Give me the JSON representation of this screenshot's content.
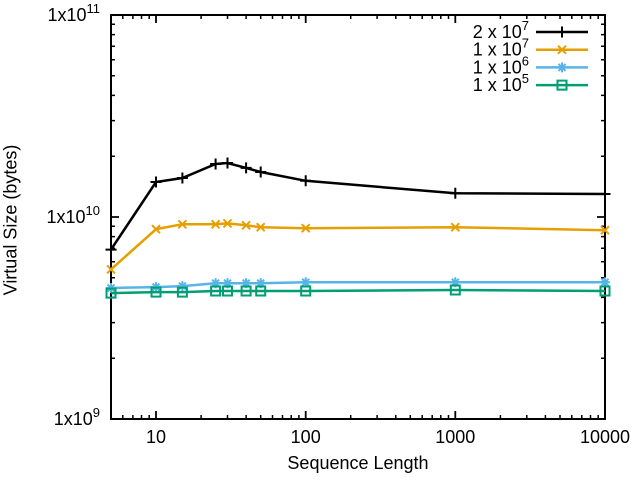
{
  "page": {
    "background": "#ffffff"
  },
  "chart_data": {
    "type": "line",
    "title": "",
    "xlabel": "Sequence Length",
    "ylabel": "Virtual Size (bytes)",
    "x_scale": "log",
    "y_scale": "log",
    "xlim": [
      5,
      10000
    ],
    "ylim": [
      1000000000,
      100000000000
    ],
    "grid": false,
    "legend_position": "top-right-inside",
    "x_ticks": [
      {
        "v": 10,
        "label": "10"
      },
      {
        "v": 100,
        "label": "100"
      },
      {
        "v": 1000,
        "label": "1000"
      },
      {
        "v": 10000,
        "label": "10000"
      }
    ],
    "y_ticks": [
      {
        "v": 1000000000,
        "label": "1x10^9"
      },
      {
        "v": 10000000000,
        "label": "1x10^10"
      },
      {
        "v": 100000000000,
        "label": "1x10^11"
      }
    ],
    "x": [
      5,
      10,
      15,
      25,
      30,
      40,
      50,
      100,
      1000,
      10000
    ],
    "series": [
      {
        "name": "2 x 10^7",
        "color": "#000000",
        "marker": "plus",
        "values": [
          6900000000.0,
          14900000000.0,
          15600000000.0,
          18300000000.0,
          18500000000.0,
          17500000000.0,
          16700000000.0,
          15100000000.0,
          13100000000.0,
          13000000000.0
        ]
      },
      {
        "name": "1 x 10^7",
        "color": "#e69f00",
        "marker": "cross",
        "values": [
          5500000000.0,
          8700000000.0,
          9200000000.0,
          9200000000.0,
          9300000000.0,
          9100000000.0,
          8900000000.0,
          8800000000.0,
          8900000000.0,
          8600000000.0
        ]
      },
      {
        "name": "1 x 10^6",
        "color": "#56b4e9",
        "marker": "asterisk",
        "values": [
          4450000000.0,
          4500000000.0,
          4550000000.0,
          4700000000.0,
          4700000000.0,
          4700000000.0,
          4700000000.0,
          4750000000.0,
          4750000000.0,
          4750000000.0
        ]
      },
      {
        "name": "1 x 10^5",
        "color": "#009e73",
        "marker": "square",
        "values": [
          4200000000.0,
          4250000000.0,
          4250000000.0,
          4300000000.0,
          4300000000.0,
          4300000000.0,
          4300000000.0,
          4300000000.0,
          4350000000.0,
          4300000000.0
        ]
      }
    ]
  }
}
